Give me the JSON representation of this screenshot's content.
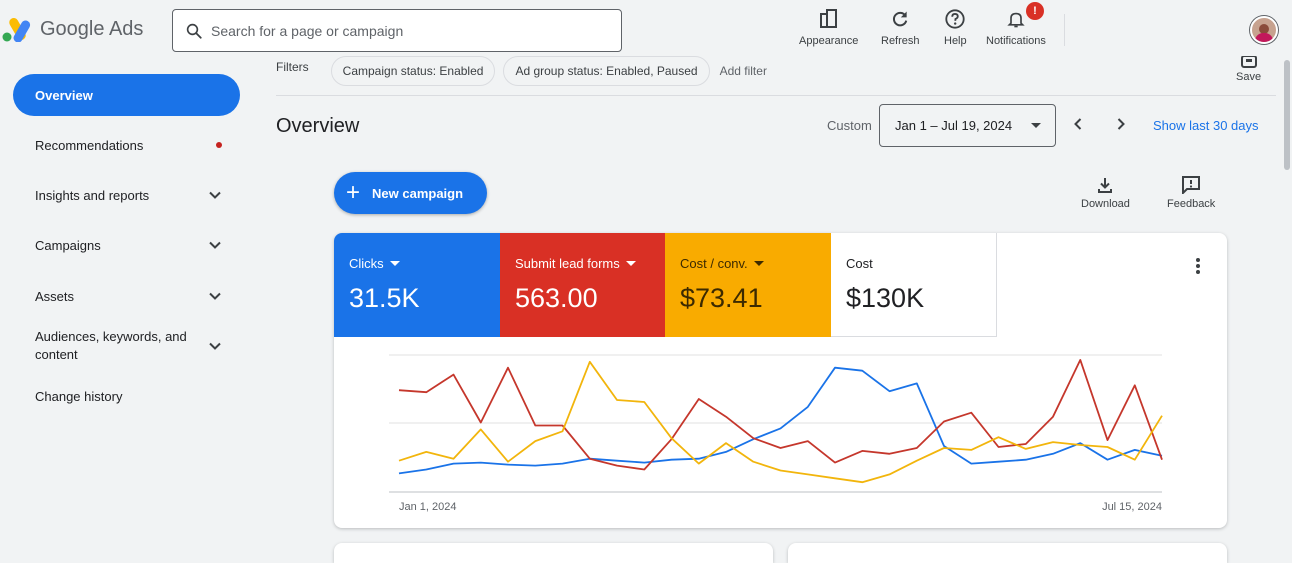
{
  "app": {
    "name": "Google Ads"
  },
  "search": {
    "placeholder": "Search for a page or campaign"
  },
  "toolbar": {
    "appearance": "Appearance",
    "refresh": "Refresh",
    "help": "Help",
    "notifications": "Notifications",
    "notification_badge": "!"
  },
  "nav": {
    "items": [
      {
        "label": "Overview"
      },
      {
        "label": "Recommendations"
      },
      {
        "label": "Insights and reports"
      },
      {
        "label": "Campaigns"
      },
      {
        "label": "Assets"
      },
      {
        "label": "Audiences, keywords, and content"
      },
      {
        "label": "Change history"
      }
    ]
  },
  "filters": {
    "label": "Filters",
    "chips": [
      "Campaign status: Enabled",
      "Ad group status: Enabled, Paused"
    ],
    "add": "Add filter",
    "save": "Save"
  },
  "overview": {
    "title": "Overview",
    "custom_label": "Custom",
    "date_range": "Jan 1 – Jul 19, 2024",
    "show_last": "Show last 30 days",
    "new_campaign": "New campaign",
    "download": "Download",
    "feedback": "Feedback"
  },
  "metrics": [
    {
      "label": "Clicks",
      "value": "31.5K",
      "color": "#1a73e8"
    },
    {
      "label": "Submit lead forms",
      "value": "563.00",
      "color": "#d93025"
    },
    {
      "label": "Cost / conv.",
      "value": "$73.41",
      "color": "#f9ab00"
    },
    {
      "label": "Cost",
      "value": "$130K",
      "color": "#ffffff"
    }
  ],
  "colors": {
    "blue": "#1a73e8",
    "red": "#c5372c",
    "yellow": "#f2b50c"
  },
  "chart_data": {
    "type": "line",
    "x_start_label": "Jan 1, 2024",
    "x_end_label": "Jul 15, 2024",
    "grid": true,
    "series": [
      {
        "color": "#1a73e8",
        "values": [
          19,
          23,
          29,
          30,
          28,
          27,
          29,
          34,
          32,
          30,
          33,
          34,
          41,
          54,
          65,
          87,
          127,
          124,
          103,
          111,
          47,
          29,
          31,
          33,
          39,
          50,
          33,
          43,
          37
        ]
      },
      {
        "color": "#c5372c",
        "values": [
          104,
          102,
          120,
          71,
          127,
          68,
          68,
          34,
          27,
          23,
          54,
          95,
          77,
          55,
          45,
          52,
          30,
          42,
          39,
          45,
          72,
          81,
          46,
          49,
          77,
          135,
          53,
          109,
          33
        ]
      },
      {
        "color": "#f2b50c",
        "values": [
          32,
          41,
          34,
          64,
          31,
          52,
          62,
          133,
          94,
          92,
          55,
          29,
          50,
          31,
          22,
          18,
          14,
          10,
          18,
          32,
          45,
          43,
          56,
          44,
          51,
          48,
          46,
          33,
          78
        ]
      }
    ]
  }
}
